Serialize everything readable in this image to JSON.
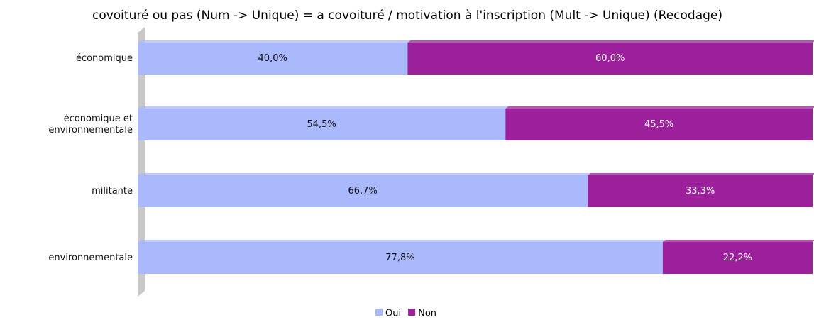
{
  "chart_data": {
    "type": "stacked-bar-horizontal",
    "title": "covoituré ou pas (Num -> Unique) = a covoituré / motivation à l'inscription (Mult -> Unique) (Recodage)",
    "categories": [
      "économique",
      "économique et environnementale",
      "militante",
      "environnementale"
    ],
    "xlim": [
      0,
      100
    ],
    "series": [
      {
        "name": "Oui",
        "color": "#aab9fc",
        "values": [
          40.0,
          54.5,
          66.7,
          77.8
        ],
        "value_labels": [
          "40,0%",
          "54,5%",
          "66,7%",
          "77,8%"
        ]
      },
      {
        "name": "Non",
        "color": "#9c1f9c",
        "values": [
          60.0,
          45.5,
          33.3,
          22.2
        ],
        "value_labels": [
          "60,0%",
          "45,5%",
          "33,3%",
          "22,2%"
        ]
      }
    ]
  }
}
